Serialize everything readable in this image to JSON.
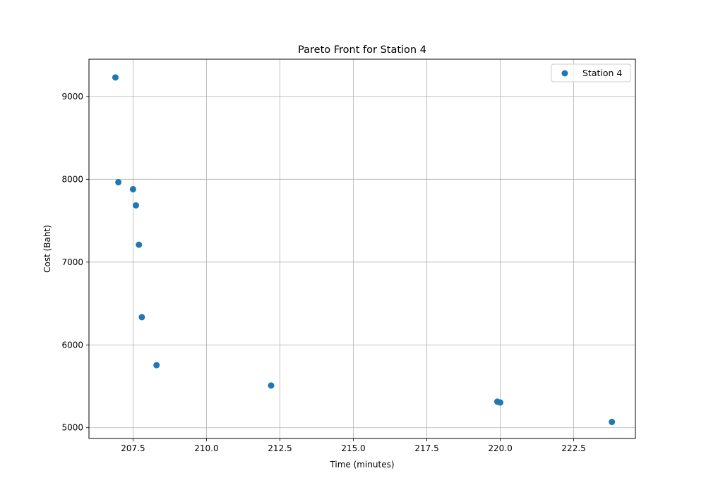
{
  "chart_data": {
    "type": "scatter",
    "title": "Pareto Front for Station 4",
    "xlabel": "Time (minutes)",
    "ylabel": "Cost (Baht)",
    "xlim": [
      206.0,
      224.6
    ],
    "ylim": [
      4870,
      9450
    ],
    "xticks": [
      207.5,
      210.0,
      212.5,
      215.0,
      217.5,
      220.0,
      222.5
    ],
    "xtick_labels": [
      "207.5",
      "210.0",
      "212.5",
      "215.0",
      "217.5",
      "220.0",
      "222.5"
    ],
    "yticks": [
      5000,
      6000,
      7000,
      8000,
      9000
    ],
    "ytick_labels": [
      "5000",
      "6000",
      "7000",
      "8000",
      "9000"
    ],
    "grid": true,
    "legend_position": "top-right",
    "series": [
      {
        "name": "Station 4",
        "color": "#1f77b4",
        "points": [
          {
            "x": 206.9,
            "y": 9230
          },
          {
            "x": 207.0,
            "y": 7965
          },
          {
            "x": 207.5,
            "y": 7880
          },
          {
            "x": 207.6,
            "y": 7685
          },
          {
            "x": 207.7,
            "y": 7210
          },
          {
            "x": 207.8,
            "y": 6335
          },
          {
            "x": 208.3,
            "y": 5755
          },
          {
            "x": 212.2,
            "y": 5510
          },
          {
            "x": 219.9,
            "y": 5315
          },
          {
            "x": 220.0,
            "y": 5305
          },
          {
            "x": 223.8,
            "y": 5070
          }
        ]
      }
    ]
  }
}
